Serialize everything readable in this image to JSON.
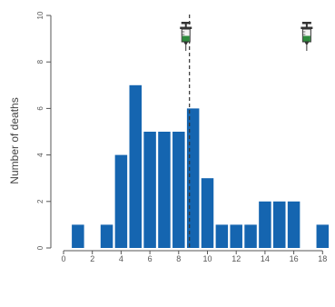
{
  "chart_data": {
    "type": "bar",
    "xlabel": "",
    "ylabel": "Number of deaths",
    "ylim": [
      0,
      10
    ],
    "yticks": [
      0,
      2,
      4,
      6,
      8,
      10
    ],
    "xlim": [
      -0.5,
      18.5
    ],
    "xticks": [
      0,
      2,
      4,
      6,
      8,
      10,
      12,
      14,
      16,
      18
    ],
    "x": [
      1,
      3,
      4,
      5,
      6,
      7,
      8,
      9,
      10,
      11,
      12,
      13,
      14,
      15,
      16,
      18
    ],
    "values": [
      1,
      1,
      4,
      7,
      5,
      5,
      5,
      6,
      3,
      1,
      1,
      1,
      2,
      2,
      2,
      1
    ],
    "reference_line_x": 8.75,
    "syringe_marker_x": [
      8.5,
      16.9
    ],
    "bar_color": "#1565b0",
    "line_color": "#333333",
    "grid": false
  }
}
